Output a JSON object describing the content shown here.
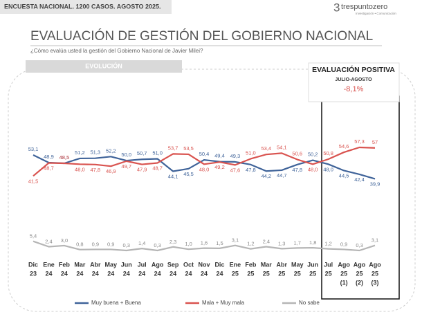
{
  "header": {
    "survey": "ENCUESTA NACIONAL. 1200 CASOS. AGOSTO 2025.",
    "logo_mark": "3",
    "logo": "trespuntozero",
    "logo_tagline": "Investigación • Comunicación"
  },
  "title": "EVALUACIÓN DE GESTIÓN DEL GOBIERNO NACIONAL",
  "subtitle": "¿Cómo evalúa usted la gestión del Gobierno Nacional de Javier Milei?",
  "section": "EVOLUCIÓN",
  "callout": {
    "title": "EVALUACIÓN POSITIVA",
    "period": "JULIO-AGOSTO",
    "change": "-8,1%"
  },
  "chart_data": {
    "type": "line",
    "categories": [
      [
        "Dic",
        "23"
      ],
      [
        "Ene",
        "24"
      ],
      [
        "Feb",
        "24"
      ],
      [
        "Mar",
        "24"
      ],
      [
        "Abr",
        "24"
      ],
      [
        "May",
        "24"
      ],
      [
        "Jun",
        "24"
      ],
      [
        "Jul",
        "24"
      ],
      [
        "Ago",
        "24"
      ],
      [
        "Sep",
        "24"
      ],
      [
        "Oct",
        "24"
      ],
      [
        "Nov",
        "24"
      ],
      [
        "Dic",
        "24"
      ],
      [
        "Ene",
        "25"
      ],
      [
        "Feb",
        "25"
      ],
      [
        "Mar",
        "25"
      ],
      [
        "Abr",
        "25"
      ],
      [
        "May",
        "25"
      ],
      [
        "Jun",
        "25"
      ],
      [
        "Jul",
        "25"
      ],
      [
        "Ago",
        "25",
        "(1)"
      ],
      [
        "Ago",
        "25",
        "(2)"
      ],
      [
        "Ago",
        "25",
        "(3)"
      ]
    ],
    "series": [
      {
        "name": "Muy buena + Buena",
        "color": "#3f6399",
        "values": [
          53.1,
          48.9,
          48.5,
          51.2,
          51.3,
          52.2,
          50.0,
          50.7,
          51.0,
          44.1,
          45.5,
          50.4,
          49.4,
          49.3,
          47.8,
          44.2,
          44.7,
          47.8,
          50.2,
          48.0,
          44.5,
          42.4,
          39.9
        ],
        "value_labels": [
          "53,1",
          "48,9",
          "48,5",
          "51,2",
          "51,3",
          "52,2",
          "50,0",
          "50,7",
          "51,0",
          "44,1",
          "45,5",
          "50,4",
          "49,4",
          "49,3",
          "47,8",
          "44,2",
          "44,7",
          "47,8",
          "50,2",
          "48,0",
          "44,5",
          "42,4",
          "39,9"
        ]
      },
      {
        "name": "Mala + Muy mala",
        "color": "#d9534f",
        "values": [
          41.5,
          48.7,
          48.5,
          48.0,
          47.8,
          46.9,
          49.7,
          47.9,
          48.7,
          53.7,
          53.5,
          48.0,
          49.2,
          47.6,
          51.0,
          53.4,
          54.1,
          50.6,
          48.0,
          50.8,
          54.6,
          57.3,
          57
        ],
        "value_labels": [
          "41,5",
          "48,7",
          "48,5",
          "48,0",
          "47,8",
          "46,9",
          "49,7",
          "47,9",
          "48,7",
          "53,7",
          "53,5",
          "48,0",
          "49,2",
          "47,6",
          "51,0",
          "53,4",
          "54,1",
          "50,6",
          "48,0",
          "50,8",
          "54,6",
          "57,3",
          "57"
        ]
      },
      {
        "name": "No sabe",
        "color": "#b5b5b5",
        "values": [
          5.4,
          2.4,
          3.0,
          0.8,
          0.9,
          0.9,
          0.3,
          1.4,
          0.3,
          2.3,
          1.0,
          1.6,
          1.5,
          3.1,
          1.2,
          2.4,
          1.3,
          1.7,
          1.8,
          1.2,
          0.9,
          0.3,
          3.1
        ],
        "value_labels": [
          "5,4",
          "2,4",
          "3,0",
          "0,8",
          "0,9",
          "0,9",
          "0,3",
          "1,4",
          "0,3",
          "2,3",
          "1,0",
          "1,6",
          "1,5",
          "3,1",
          "1,2",
          "2,4",
          "1,3",
          "1,7",
          "1,8",
          "1,2",
          "0,9",
          "0,3",
          "3,1"
        ]
      }
    ]
  }
}
